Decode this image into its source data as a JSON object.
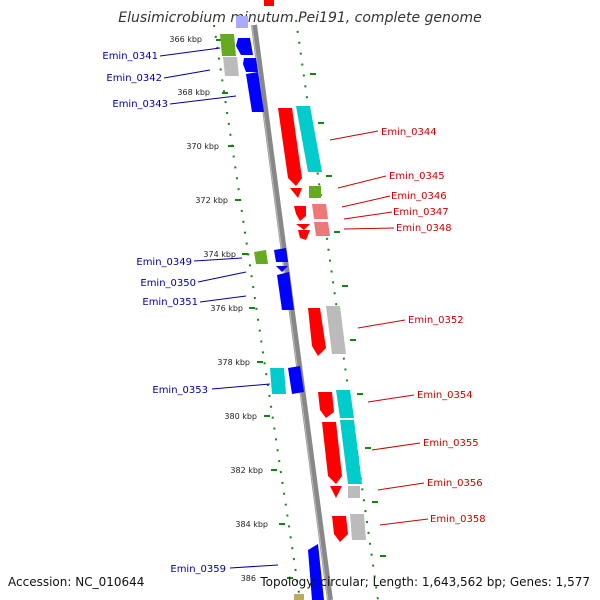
{
  "title": "Elusimicrobium minutum Pei191, complete genome",
  "accession": "Accession: NC_010644",
  "topology": "Topology: circular; Length: 1,643,562 bp; Genes: 1,577",
  "ticks": [
    "366 kbp",
    "368 kbp",
    "370 kbp",
    "372 kbp",
    "374 kbp",
    "376 kbp",
    "378 kbp",
    "380 kbp",
    "382 kbp",
    "384 kbp",
    "386"
  ],
  "left_labels": [
    "Emin_0341",
    "Emin_0342",
    "Emin_0343",
    "Emin_0349",
    "Emin_0350",
    "Emin_0351",
    "Emin_0353",
    "Emin_0359"
  ],
  "right_labels": [
    "Emin_0344",
    "Emin_0345",
    "Emin_0346",
    "Emin_0347",
    "Emin_0348",
    "Emin_0352",
    "Emin_0354",
    "Emin_0355",
    "Emin_0356",
    "Emin_0358"
  ],
  "colors": {
    "forward_label": "#0000a0",
    "reverse_label": "#cc0000",
    "forward_gene": "#0000ff",
    "reverse_gene": "#ff0000",
    "cyan_gene": "#00cccc",
    "grey_gene": "#bbbbbb",
    "green_gene": "#66aa22",
    "pink_gene": "#ee7777",
    "dot_track": "#118811"
  }
}
